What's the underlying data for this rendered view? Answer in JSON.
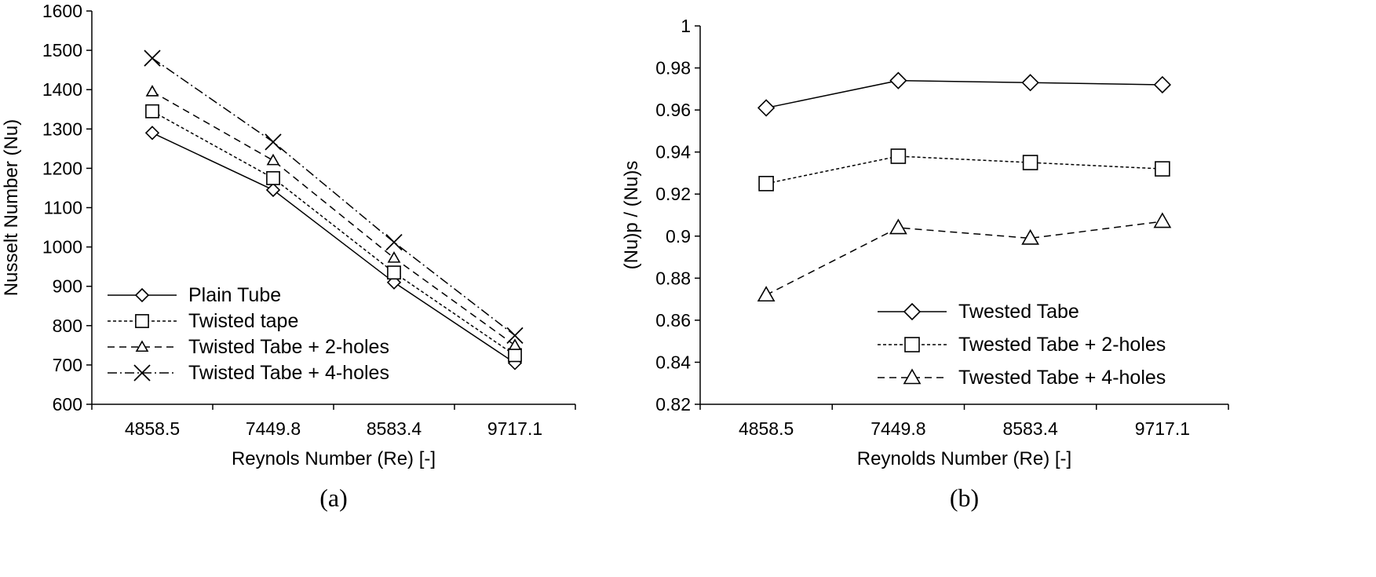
{
  "chart_data": [
    {
      "type": "line",
      "caption": "(a)",
      "categories": [
        "4858.5",
        "7449.8",
        "8583.4",
        "9717.1"
      ],
      "xlabel": "Reynols Number (Re) [-]",
      "ylabel": "Nusselt Number (Nu)",
      "ylim": [
        600,
        1600
      ],
      "yticks": [
        "600",
        "700",
        "800",
        "900",
        "1000",
        "1100",
        "1200",
        "1300",
        "1400",
        "1500",
        "1600"
      ],
      "grid": false,
      "legend_position": "bottom-left",
      "series": [
        {
          "name": "Plain Tube",
          "marker": "diamond",
          "dash": "solid",
          "values": [
            1290,
            1145,
            910,
            705
          ]
        },
        {
          "name": "Twisted tape",
          "marker": "square",
          "dash": "dotted",
          "values": [
            1345,
            1175,
            935,
            725
          ]
        },
        {
          "name": "Twisted Tabe + 2-holes",
          "marker": "triangle",
          "dash": "dashed",
          "values": [
            1395,
            1220,
            972,
            750
          ]
        },
        {
          "name": "Twisted Tabe + 4-holes",
          "marker": "x",
          "dash": "dashdot",
          "values": [
            1480,
            1267,
            1012,
            775
          ]
        }
      ]
    },
    {
      "type": "line",
      "caption": "(b)",
      "categories": [
        "4858.5",
        "7449.8",
        "8583.4",
        "9717.1"
      ],
      "xlabel": "Reynolds Number (Re) [-]",
      "ylabel": "(Nu)p / (Nu)s",
      "ylim": [
        0.82,
        1
      ],
      "yticks": [
        "0.82",
        "0.84",
        "0.86",
        "0.88",
        "0.9",
        "0.92",
        "0.94",
        "0.96",
        "0.98",
        "1"
      ],
      "grid": false,
      "legend_position": "bottom-right",
      "series": [
        {
          "name": "Twested Tabe",
          "marker": "diamond",
          "dash": "solid",
          "values": [
            0.961,
            0.974,
            0.973,
            0.972
          ]
        },
        {
          "name": "Twested Tabe + 2-holes",
          "marker": "square",
          "dash": "dotted",
          "values": [
            0.925,
            0.938,
            0.935,
            0.932
          ]
        },
        {
          "name": "Twested Tabe + 4-holes",
          "marker": "triangle",
          "dash": "dashed",
          "values": [
            0.872,
            0.904,
            0.899,
            0.907
          ]
        }
      ]
    }
  ]
}
